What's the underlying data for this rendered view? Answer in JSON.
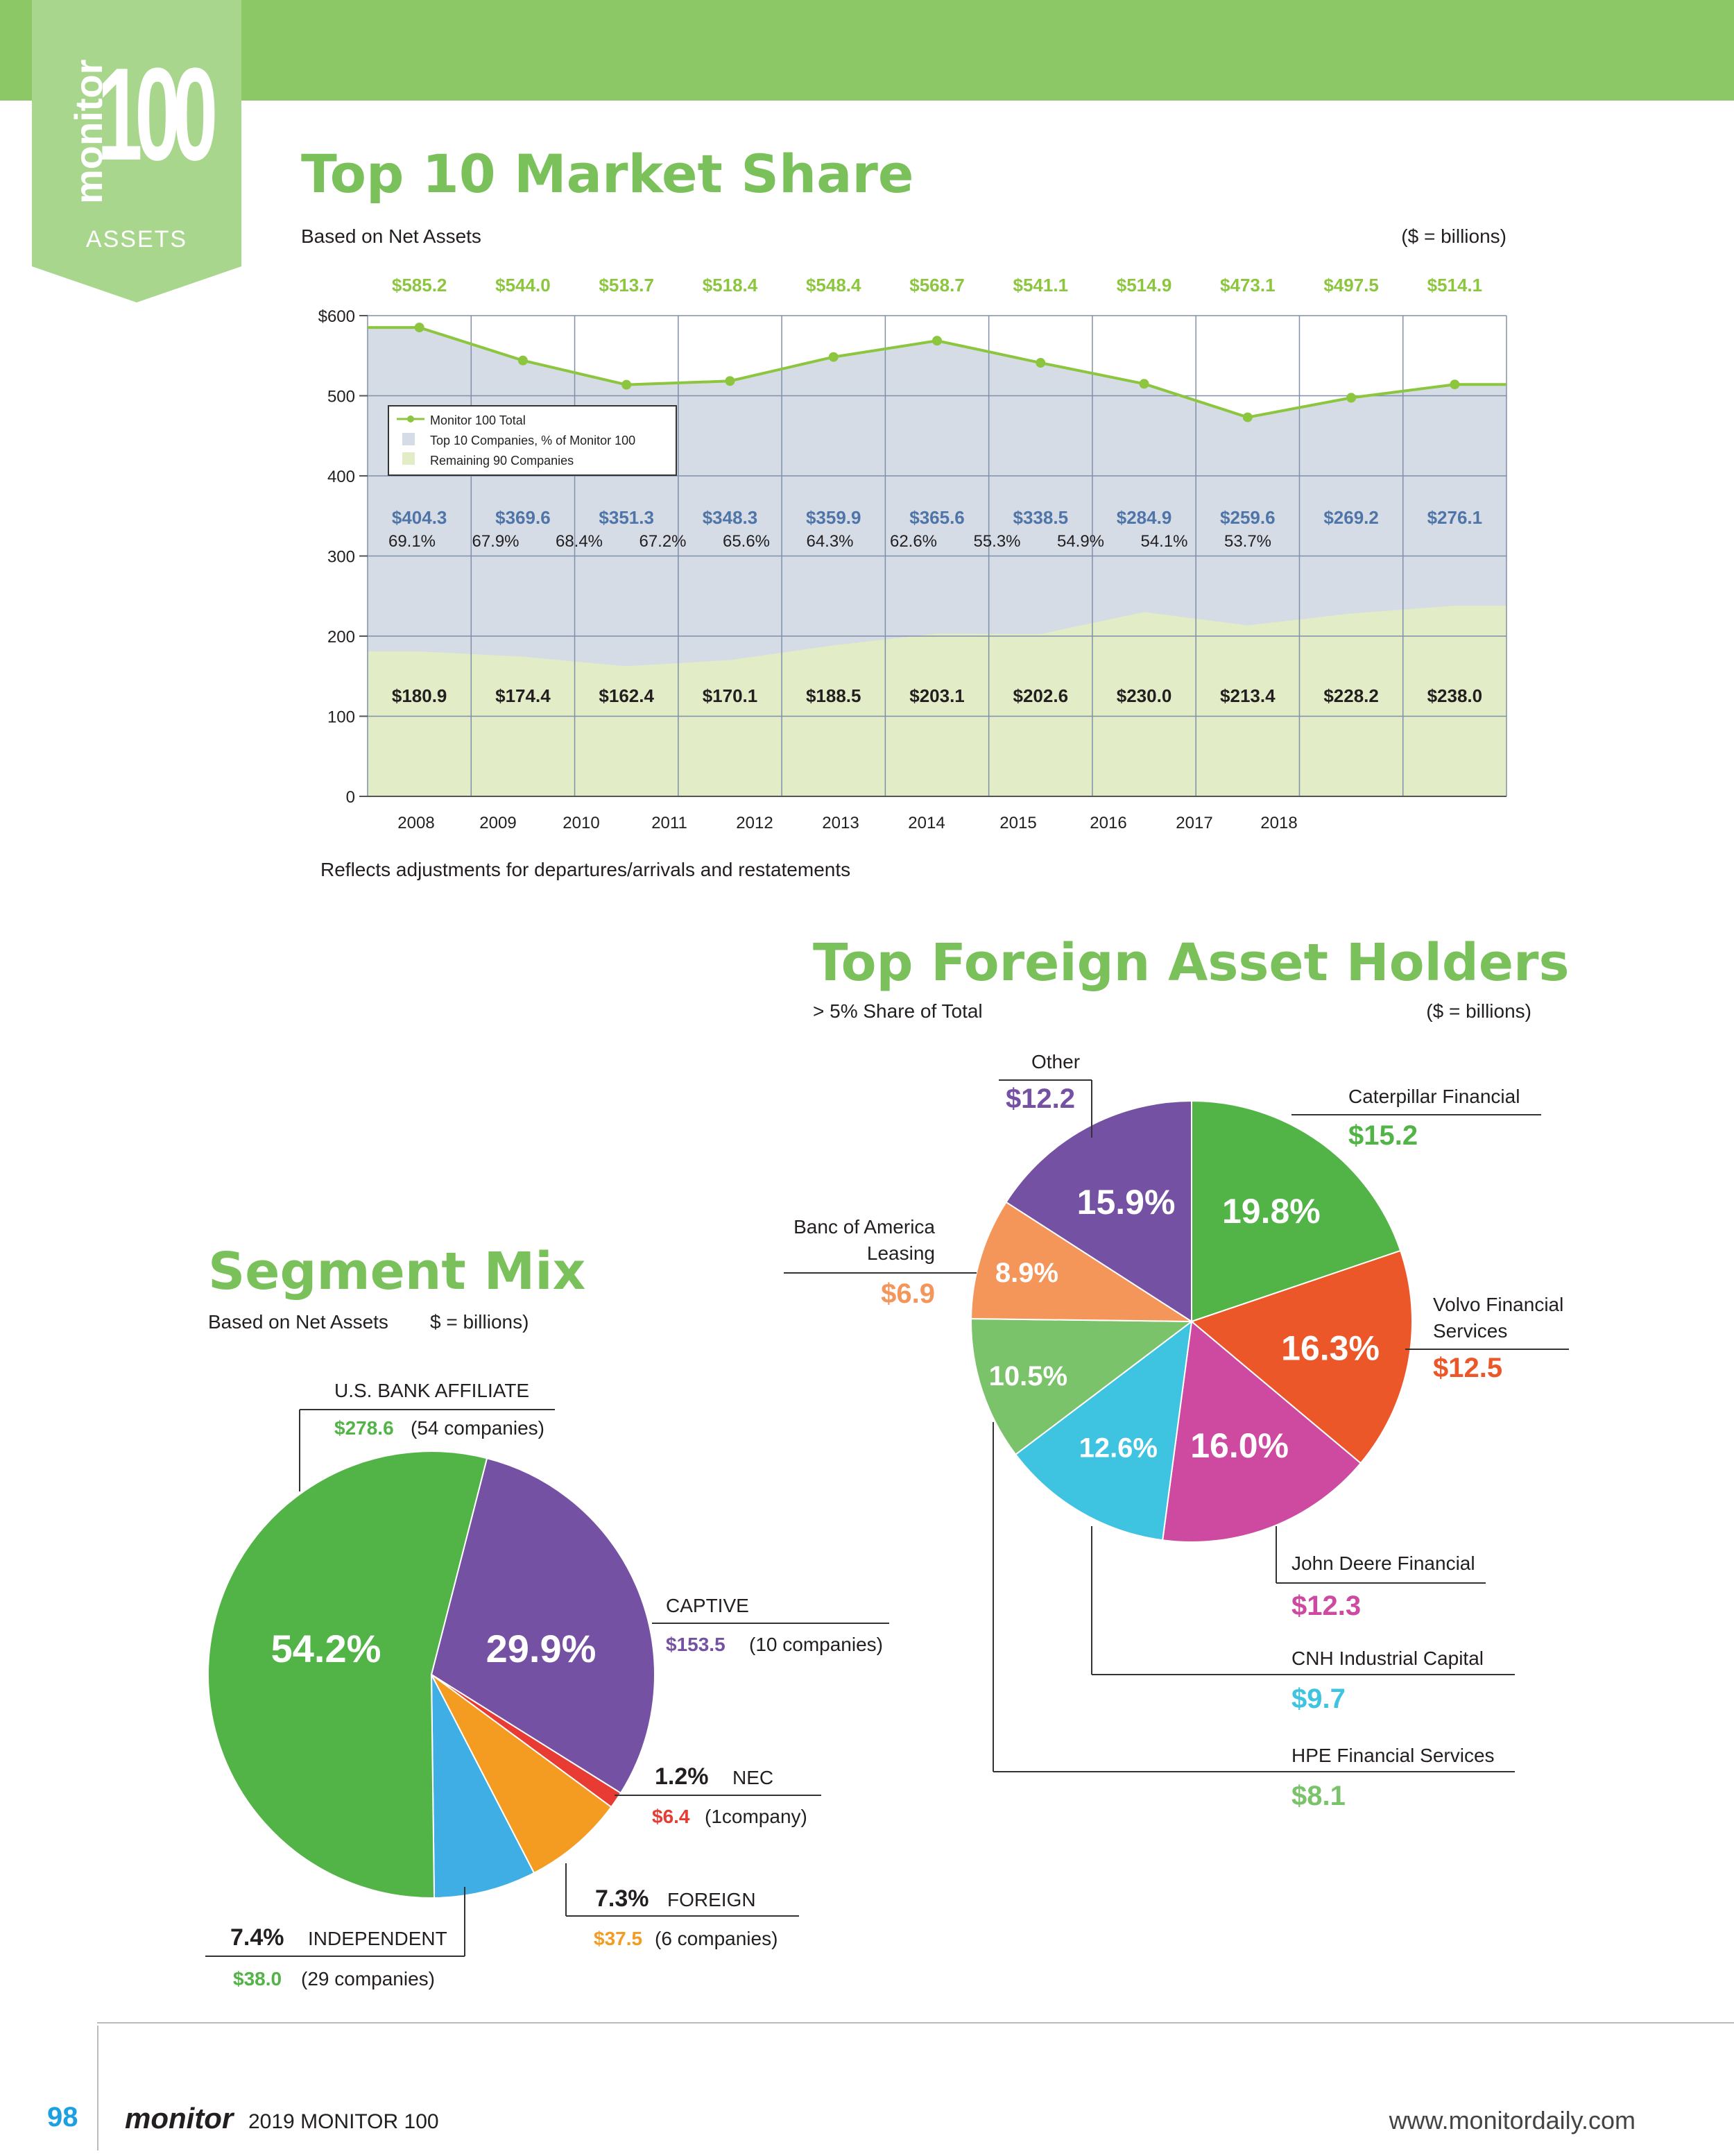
{
  "badge": {
    "word": "monitor",
    "number": "100",
    "section": "ASSETS"
  },
  "market": {
    "title": "Top 10 Market Share",
    "basis": "Based on Net Assets",
    "units": "($ = billions)",
    "note": "Reflects adjustments for departures/arrivals and restatements",
    "legend": [
      "Monitor 100 Total",
      "Top 10 Companies, % of Monitor 100",
      "Remaining 90 Companies"
    ]
  },
  "chart_data": [
    {
      "type": "area",
      "title": "Top 10 Market Share",
      "ylim": [
        0,
        600
      ],
      "yticks": [
        "$600",
        "500",
        "400",
        "300",
        "200",
        "100",
        "0"
      ],
      "x": [
        "2008",
        "2009",
        "2010",
        "2011",
        "2012",
        "2013",
        "2014",
        "2015",
        "2016",
        "2017",
        "2018"
      ],
      "series": [
        {
          "name": "Monitor 100 Total",
          "type": "line",
          "color": "#8cc63f",
          "values": [
            585.2,
            544.0,
            513.7,
            518.4,
            548.4,
            568.7,
            541.1,
            514.9,
            473.1,
            497.5,
            514.1
          ],
          "labels": [
            "$585.2",
            "$544.0",
            "$513.7",
            "$518.4",
            "$548.4",
            "$568.7",
            "$541.1",
            "$514.9",
            "$473.1",
            "$497.5",
            "$514.1"
          ]
        },
        {
          "name": "Top 10 Companies, % of Monitor 100",
          "type": "area",
          "color": "#d5dce6",
          "values": [
            404.3,
            369.6,
            351.3,
            348.3,
            359.9,
            365.6,
            338.5,
            284.9,
            259.6,
            269.2,
            276.1
          ],
          "labels": [
            "$404.3",
            "$369.6",
            "$351.3",
            "$348.3",
            "$359.9",
            "$365.6",
            "$338.5",
            "$284.9",
            "$259.6",
            "$269.2",
            "$276.1"
          ],
          "percents": [
            "69.1%",
            "67.9%",
            "68.4%",
            "67.2%",
            "65.6%",
            "64.3%",
            "62.6%",
            "55.3%",
            "54.9%",
            "54.1%",
            "53.7%"
          ]
        },
        {
          "name": "Remaining 90 Companies",
          "type": "area",
          "color": "#e2ecc6",
          "values": [
            180.9,
            174.4,
            162.4,
            170.1,
            188.5,
            203.1,
            202.6,
            230.0,
            213.4,
            228.2,
            238.0
          ],
          "labels": [
            "$180.9",
            "$174.4",
            "$162.4",
            "$170.1",
            "$188.5",
            "$203.1",
            "$202.6",
            "$230.0",
            "$213.4",
            "$228.2",
            "$238.0"
          ]
        }
      ]
    },
    {
      "type": "pie",
      "title": "Top Foreign Asset Holders",
      "slices": [
        {
          "name": "Caterpillar Financial",
          "value": 15.2,
          "value_label": "$15.2",
          "percent": 19.8,
          "percent_label": "19.8%",
          "color": "#52b447"
        },
        {
          "name": "Volvo Financial Services",
          "value": 12.5,
          "value_label": "$12.5",
          "percent": 16.3,
          "percent_label": "16.3%",
          "color": "#ec5729"
        },
        {
          "name": "John Deere Financial",
          "value": 12.3,
          "value_label": "$12.3",
          "percent": 16.0,
          "percent_label": "16.0%",
          "color": "#cd4aa0"
        },
        {
          "name": "CNH Industrial Capital",
          "value": 9.7,
          "value_label": "$9.7",
          "percent": 12.6,
          "percent_label": "12.6%",
          "color": "#3ec4e0"
        },
        {
          "name": "HPE Financial Services",
          "value": 8.1,
          "value_label": "$8.1",
          "percent": 10.5,
          "percent_label": "10.5%",
          "color": "#7bc36b"
        },
        {
          "name": "Banc of America Leasing",
          "value": 6.9,
          "value_label": "$6.9",
          "percent": 8.9,
          "percent_label": "8.9%",
          "color": "#f4955a"
        },
        {
          "name": "Other",
          "value": 12.2,
          "value_label": "$12.2",
          "percent": 15.9,
          "percent_label": "15.9%",
          "color": "#7551a3"
        }
      ]
    },
    {
      "type": "pie",
      "title": "Segment Mix",
      "slices": [
        {
          "name": "U.S. BANK AFFILIATE",
          "value": 278.6,
          "value_label": "$278.6",
          "companies": "(54 companies)",
          "percent": 54.2,
          "percent_label": "54.2%",
          "color": "#52b447"
        },
        {
          "name": "CAPTIVE",
          "value": 153.5,
          "value_label": "$153.5",
          "companies": "(10 companies)",
          "percent": 29.9,
          "percent_label": "29.9%",
          "color": "#7551a3"
        },
        {
          "name": "NEC",
          "value": 6.4,
          "value_label": "$6.4",
          "companies": "(1company)",
          "percent": 1.2,
          "percent_label": "1.2%",
          "color": "#e73b33"
        },
        {
          "name": "FOREIGN",
          "value": 37.5,
          "value_label": "$37.5",
          "companies": "(6 companies)",
          "percent": 7.3,
          "percent_label": "7.3%",
          "color": "#f49c22"
        },
        {
          "name": "INDEPENDENT",
          "value": 38.0,
          "value_label": "$38.0",
          "companies": "(29 companies)",
          "percent": 7.4,
          "percent_label": "7.4%",
          "color": "#3eaee4"
        }
      ]
    }
  ],
  "foreign": {
    "title": "Top Foreign Asset Holders",
    "basis": "> 5% Share of Total",
    "units": "($ = billions)"
  },
  "segment": {
    "title": "Segment Mix",
    "basis": "Based on Net Assets",
    "units": "$ = billions)"
  },
  "footer": {
    "page": "98",
    "brand": "monitor",
    "edition": "2019 MONITOR 100",
    "url": "www.monitordaily.com"
  }
}
